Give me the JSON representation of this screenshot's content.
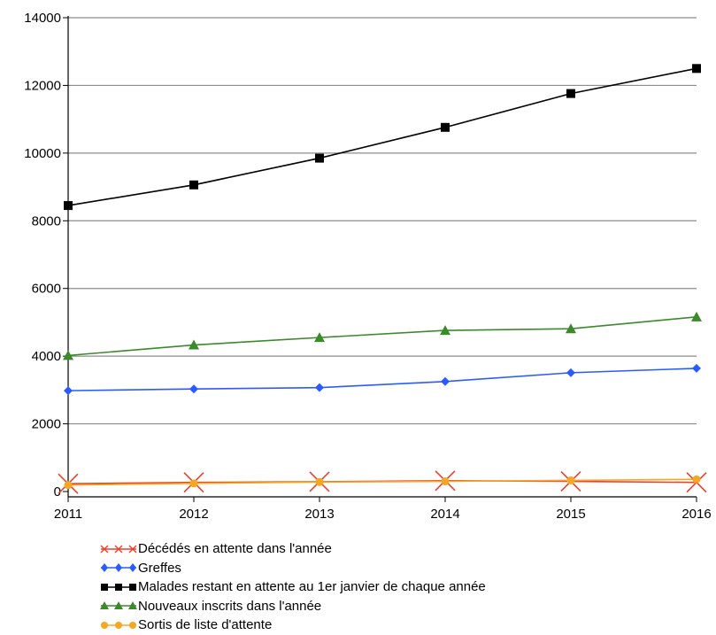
{
  "chart_data": {
    "type": "line",
    "title": "",
    "xlabel": "",
    "ylabel": "",
    "x": [
      2011,
      2012,
      2013,
      2014,
      2015,
      2016
    ],
    "xlim": [
      2011,
      2016
    ],
    "ylim": [
      0,
      14000
    ],
    "yticks": [
      0,
      2000,
      4000,
      6000,
      8000,
      10000,
      12000,
      14000
    ],
    "xtick_labels": [
      "2011",
      "2012",
      "2013",
      "2014",
      "2015",
      "2016"
    ],
    "ytick_labels": [
      "0",
      "2000",
      "4000",
      "6000",
      "8000",
      "10000",
      "12000",
      "14000"
    ],
    "grid": "horizontal",
    "legend_position": "bottom",
    "series": [
      {
        "name": "Décédés en attente dans l'année",
        "values": [
          230,
          270,
          290,
          320,
          300,
          270
        ],
        "color": "#e8412c",
        "marker": "x"
      },
      {
        "name": "Greffes",
        "values": [
          2980,
          3030,
          3070,
          3250,
          3510,
          3640
        ],
        "color": "#2a5bff",
        "marker": "diamond"
      },
      {
        "name": "Malades restant en attente au 1er janvier de chaque année",
        "values": [
          8450,
          9060,
          9850,
          10760,
          11760,
          12500
        ],
        "color": "#000000",
        "marker": "square"
      },
      {
        "name": "Nouveaux inscrits dans l'année",
        "values": [
          4020,
          4330,
          4550,
          4760,
          4810,
          5160
        ],
        "color": "#3a8a2a",
        "marker": "triangle"
      },
      {
        "name": "Sortis de liste d'attente",
        "values": [
          190,
          240,
          280,
          300,
          330,
          360
        ],
        "color": "#f5a623",
        "marker": "circle"
      }
    ]
  }
}
